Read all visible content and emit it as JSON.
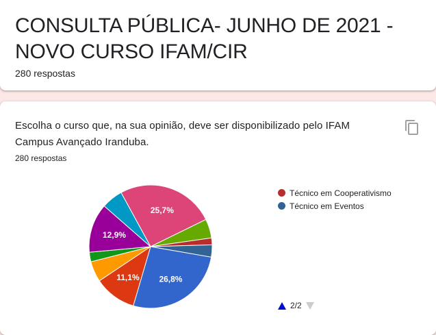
{
  "header": {
    "title": "CONSULTA PÚBLICA- JUNHO DE 2021 - NOVO CURSO IFAM/CIR",
    "response_count": "280 respostas"
  },
  "question": {
    "text": "Escolha o curso que, na sua opinião, deve ser disponibilizado pelo IFAM Campus Avançado Iranduba.",
    "response_count": "280 respostas",
    "copy_icon": "copy-icon"
  },
  "legend": {
    "items": [
      {
        "label": "Técnico em Cooperativismo",
        "color": "#b82e2e"
      },
      {
        "label": "Técnico em Eventos",
        "color": "#316395"
      }
    ],
    "pager": "2/2"
  },
  "chart_data": {
    "type": "pie",
    "slices": [
      {
        "value": 25.7,
        "label": "25,7%",
        "color": "#dd4477"
      },
      {
        "value": 5.0,
        "label": "",
        "color": "#66aa00"
      },
      {
        "value": 1.8,
        "label": "",
        "color": "#b82e2e"
      },
      {
        "value": 3.2,
        "label": "",
        "color": "#316395"
      },
      {
        "value": 26.8,
        "label": "26,8%",
        "color": "#3366cc"
      },
      {
        "value": 11.1,
        "label": "11,1%",
        "color": "#dc3912"
      },
      {
        "value": 5.4,
        "label": "",
        "color": "#ff9900"
      },
      {
        "value": 2.5,
        "label": "",
        "color": "#109618"
      },
      {
        "value": 12.9,
        "label": "12,9%",
        "color": "#990099"
      },
      {
        "value": 5.6,
        "label": "",
        "color": "#0099c6"
      }
    ]
  }
}
